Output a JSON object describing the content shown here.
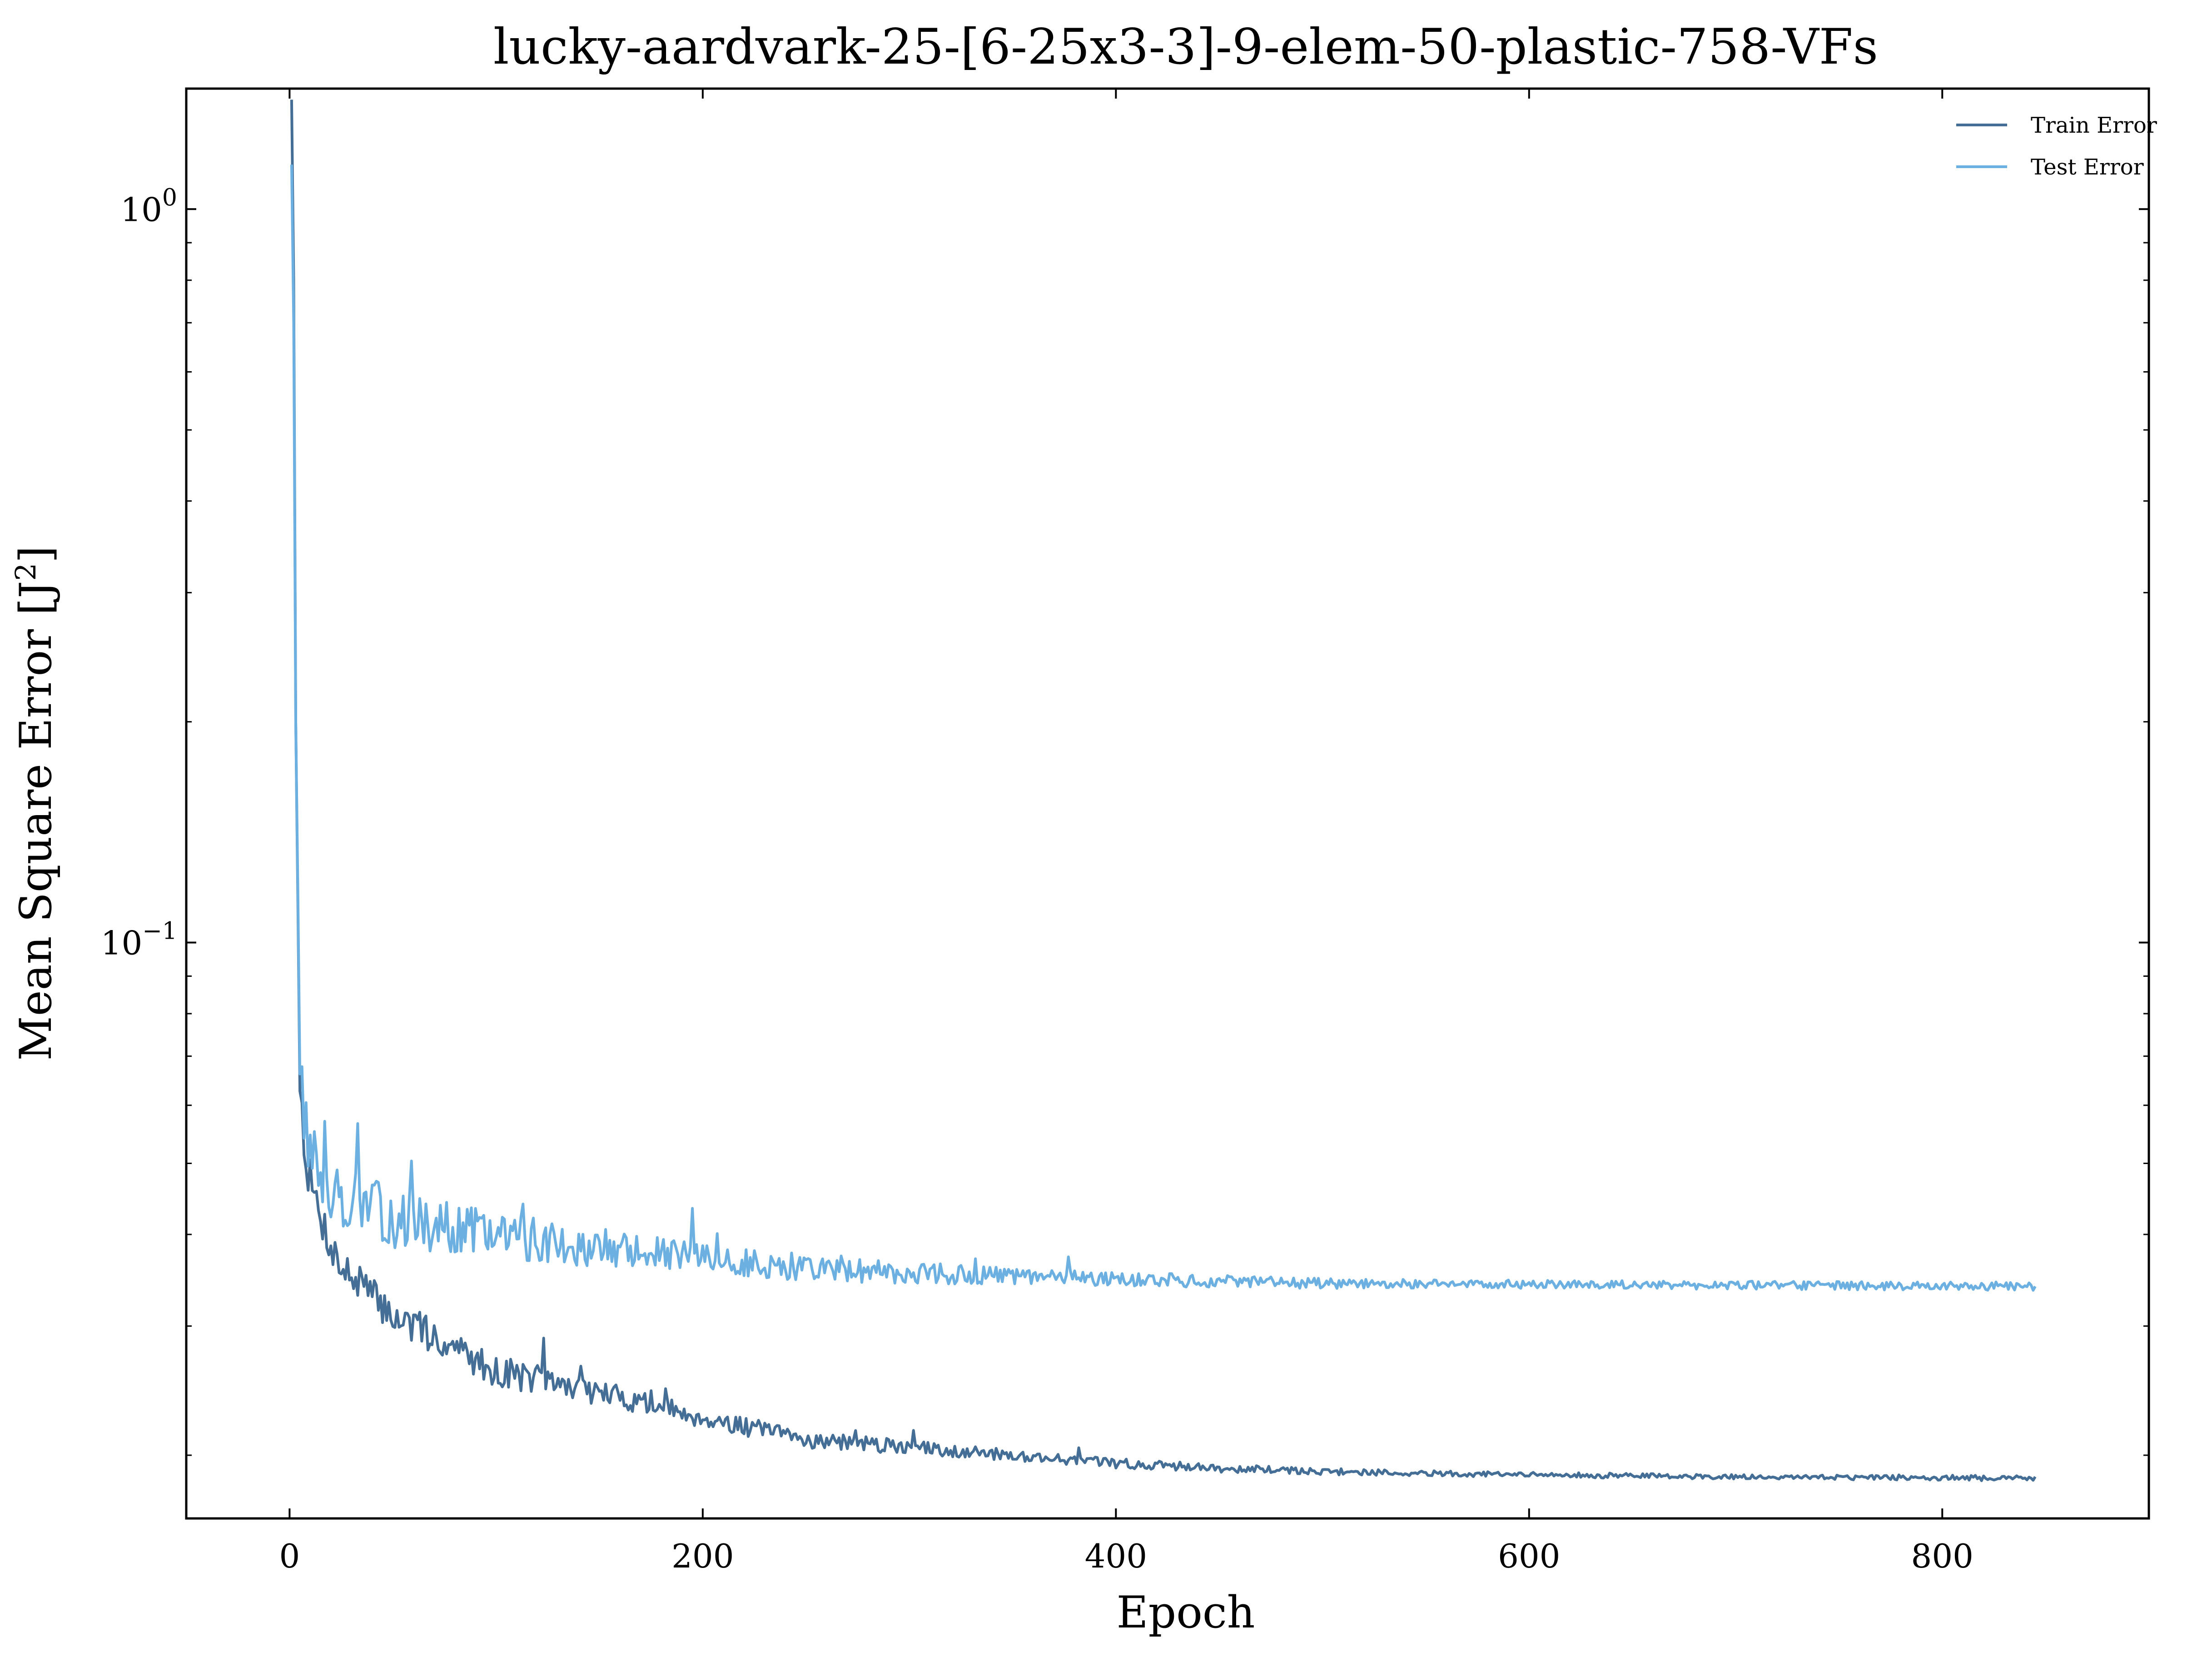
{
  "chart_data": {
    "type": "line",
    "title": "lucky-aardvark-25-[6-25x3-3]-9-elem-50-plastic-758-VFs",
    "xlabel": "Epoch",
    "ylabel": "Mean Square Error [J²]",
    "xlim": [
      -50,
      900
    ],
    "ylim": [
      0.0164,
      1.46
    ],
    "yscale": "log",
    "grid": false,
    "legend_position": "top-right",
    "xticks": [
      {
        "value": 0,
        "label": "0"
      },
      {
        "value": 200,
        "label": "200"
      },
      {
        "value": 400,
        "label": "400"
      },
      {
        "value": 600,
        "label": "600"
      },
      {
        "value": 800,
        "label": "800"
      }
    ],
    "yticks": [
      {
        "value": 1,
        "base": "10",
        "exp": "0"
      },
      {
        "value": 0.1,
        "base": "10",
        "exp": "−1"
      }
    ],
    "series": [
      {
        "name": "Train Error",
        "color": "#446e96",
        "noise": 0.07,
        "seed": 7,
        "points": [
          [
            1,
            1.41
          ],
          [
            2,
            0.8
          ],
          [
            3,
            0.2
          ],
          [
            5,
            0.065
          ],
          [
            8,
            0.05
          ],
          [
            12,
            0.045
          ],
          [
            18,
            0.04
          ],
          [
            25,
            0.036
          ],
          [
            35,
            0.034
          ],
          [
            50,
            0.031
          ],
          [
            75,
            0.0285
          ],
          [
            100,
            0.026
          ],
          [
            130,
            0.025
          ],
          [
            160,
            0.024
          ],
          [
            200,
            0.0225
          ],
          [
            250,
            0.021
          ],
          [
            300,
            0.0205
          ],
          [
            350,
            0.02
          ],
          [
            400,
            0.0195
          ],
          [
            450,
            0.0192
          ],
          [
            500,
            0.019
          ],
          [
            550,
            0.0189
          ],
          [
            600,
            0.0188
          ],
          [
            700,
            0.0187
          ],
          [
            845,
            0.0186
          ]
        ]
      },
      {
        "name": "Test Error",
        "color": "#6cb0e2",
        "noise": 0.11,
        "seed": 13,
        "points": [
          [
            1,
            1.15
          ],
          [
            2,
            0.7
          ],
          [
            3,
            0.2
          ],
          [
            5,
            0.07
          ],
          [
            8,
            0.055
          ],
          [
            12,
            0.05
          ],
          [
            18,
            0.047
          ],
          [
            25,
            0.045
          ],
          [
            35,
            0.044
          ],
          [
            50,
            0.042
          ],
          [
            75,
            0.041
          ],
          [
            100,
            0.04
          ],
          [
            130,
            0.039
          ],
          [
            160,
            0.038
          ],
          [
            200,
            0.037
          ],
          [
            250,
            0.036
          ],
          [
            300,
            0.0355
          ],
          [
            350,
            0.035
          ],
          [
            400,
            0.0348
          ],
          [
            450,
            0.0345
          ],
          [
            500,
            0.0343
          ],
          [
            600,
            0.0342
          ],
          [
            700,
            0.0341
          ],
          [
            845,
            0.034
          ]
        ]
      }
    ]
  }
}
